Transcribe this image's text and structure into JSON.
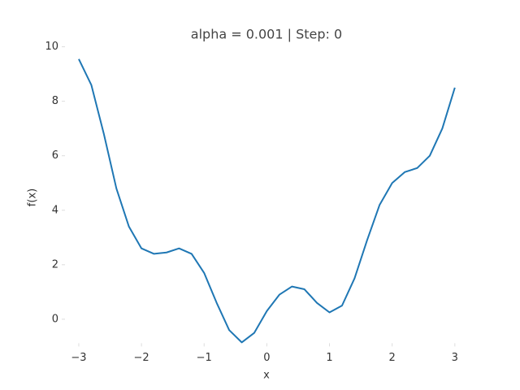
{
  "chart_data": {
    "type": "line",
    "title": "alpha = 0.001 | Step: 0",
    "xlabel": "x",
    "ylabel": "f(x)",
    "x": [
      -3,
      -2.8,
      -2.6,
      -2.4,
      -2.2,
      -2.0,
      -1.8,
      -1.6,
      -1.4,
      -1.2,
      -1.0,
      -0.8,
      -0.6,
      -0.4,
      -0.2,
      0,
      0.2,
      0.4,
      0.6,
      0.8,
      1.0,
      1.2,
      1.4,
      1.6,
      1.8,
      2.0,
      2.2,
      2.4,
      2.6,
      2.8,
      3.0
    ],
    "series": [
      {
        "color": "#1f77b4",
        "values": [
          9.55,
          8.6,
          6.8,
          4.8,
          3.4,
          2.6,
          2.4,
          2.45,
          2.6,
          2.4,
          1.7,
          0.6,
          -0.4,
          -0.85,
          -0.5,
          0.3,
          0.9,
          1.2,
          1.1,
          0.6,
          0.25,
          0.5,
          1.5,
          2.9,
          4.2,
          5.0,
          5.4,
          5.55,
          6.0,
          7.0,
          8.5
        ]
      }
    ],
    "xlim": [
      -3.22,
      3.21
    ],
    "ylim": [
      -0.88,
      10.0
    ],
    "xticks": [
      {
        "value": -3,
        "label": "−3"
      },
      {
        "value": -2,
        "label": "−2"
      },
      {
        "value": -1,
        "label": "−1"
      },
      0,
      1,
      2,
      3
    ],
    "yticks": [
      0,
      2,
      4,
      6,
      8,
      10
    ]
  }
}
